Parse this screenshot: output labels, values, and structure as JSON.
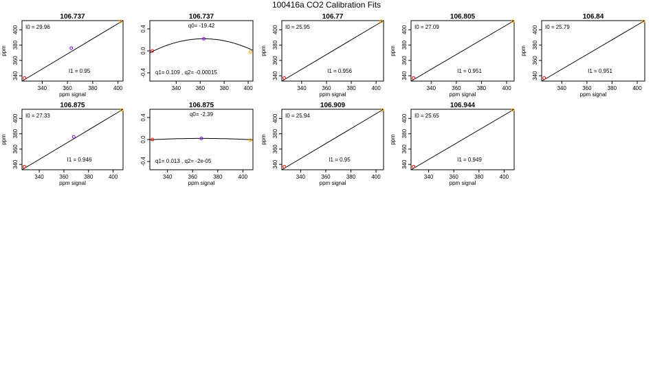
{
  "title": "100416a   CO2 Calibration Fits",
  "chart_data": [
    {
      "type": "scatter-fit",
      "kind": "linear",
      "title": "106.737",
      "xlabel": "ppm signal",
      "ylabel": "ppm",
      "xlim": [
        324,
        404
      ],
      "ylim": [
        333,
        412
      ],
      "xticks": [
        340,
        360,
        380,
        400
      ],
      "yticks": [
        340,
        360,
        380,
        400
      ],
      "x": [
        326,
        363,
        402
      ],
      "y": [
        337,
        376,
        411
      ],
      "colors": [
        "#ff0000",
        "#8800ff",
        "#ffa500"
      ],
      "fit_line": [
        [
          324,
          333
        ],
        [
          404,
          412
        ]
      ],
      "annotations": [
        {
          "text": "I0 =  29.96",
          "pos": "top-left"
        },
        {
          "text": "I1 =  0.95",
          "pos": "bottom-center"
        }
      ]
    },
    {
      "type": "scatter-fit",
      "kind": "quadratic",
      "title": "106.737",
      "xlabel": "",
      "ylabel": "",
      "xlim": [
        318,
        404
      ],
      "ylim": [
        -0.55,
        0.55
      ],
      "xticks": [
        340,
        360,
        380,
        400
      ],
      "yticks": [
        -0.4,
        0.0,
        0.4
      ],
      "x": [
        320,
        363,
        402
      ],
      "y": [
        0.0,
        0.22,
        -0.02
      ],
      "colors": [
        "#ff0000",
        "#8800ff",
        "#ffa500"
      ],
      "curve": {
        "a": 0.22,
        "h": 363,
        "k": -0.000126
      },
      "annotations": [
        {
          "text": "q0=  -19.42",
          "pos": "top-center"
        },
        {
          "text": "q1=  0.109 , q2=  -0.00015",
          "pos": "bottom-left"
        }
      ]
    },
    {
      "type": "scatter-fit",
      "kind": "linear",
      "title": "106.77",
      "xlabel": "ppm signal",
      "ylabel": "ppm",
      "xlim": [
        324,
        406
      ],
      "ylim": [
        333,
        412
      ],
      "xticks": [
        340,
        360,
        380,
        400
      ],
      "yticks": [
        340,
        360,
        380,
        400
      ],
      "x": [
        326,
        404
      ],
      "y": [
        337,
        411
      ],
      "colors": [
        "#ff0000",
        "#ffa500"
      ],
      "fit_line": [
        [
          324,
          333
        ],
        [
          406,
          412
        ]
      ],
      "annotations": [
        {
          "text": "I0 =  25.95",
          "pos": "top-left"
        },
        {
          "text": "I1 =  0.956",
          "pos": "bottom-center"
        }
      ]
    },
    {
      "type": "scatter-fit",
      "kind": "linear",
      "title": "106.805",
      "xlabel": "ppm signal",
      "ylabel": "ppm",
      "xlim": [
        324,
        406
      ],
      "ylim": [
        333,
        412
      ],
      "xticks": [
        340,
        360,
        380,
        400
      ],
      "yticks": [
        340,
        360,
        380,
        400
      ],
      "x": [
        326,
        405
      ],
      "y": [
        337,
        411
      ],
      "colors": [
        "#ff0000",
        "#ffa500"
      ],
      "fit_line": [
        [
          324,
          333
        ],
        [
          406,
          412
        ]
      ],
      "annotations": [
        {
          "text": "I0 =  27.09",
          "pos": "top-left"
        },
        {
          "text": "I1 =  0.951",
          "pos": "bottom-center"
        }
      ]
    },
    {
      "type": "scatter-fit",
      "kind": "linear",
      "title": "106.84",
      "xlabel": "ppm signal",
      "ylabel": "ppm",
      "xlim": [
        324,
        406
      ],
      "ylim": [
        333,
        412
      ],
      "xticks": [
        340,
        360,
        380,
        400
      ],
      "yticks": [
        340,
        360,
        380,
        400
      ],
      "x": [
        326,
        405
      ],
      "y": [
        337,
        411
      ],
      "colors": [
        "#ff0000",
        "#ffa500"
      ],
      "fit_line": [
        [
          324,
          333
        ],
        [
          406,
          412
        ]
      ],
      "annotations": [
        {
          "text": "I0 =  25.79",
          "pos": "top-left"
        },
        {
          "text": "I1 =  0.951",
          "pos": "bottom-center"
        }
      ]
    },
    {
      "type": "scatter-fit",
      "kind": "linear",
      "title": "106.875",
      "xlabel": "ppm signal",
      "ylabel": "ppm",
      "xlim": [
        326,
        408
      ],
      "ylim": [
        333,
        412
      ],
      "xticks": [
        340,
        360,
        380,
        400
      ],
      "yticks": [
        340,
        360,
        380,
        400
      ],
      "x": [
        328,
        368,
        407
      ],
      "y": [
        337,
        376,
        411
      ],
      "colors": [
        "#ff0000",
        "#8800ff",
        "#ffa500"
      ],
      "fit_line": [
        [
          326,
          333
        ],
        [
          408,
          412
        ]
      ],
      "annotations": [
        {
          "text": "I0 =  27.33",
          "pos": "top-left"
        },
        {
          "text": "I1 =  0.946",
          "pos": "bottom-center"
        }
      ]
    },
    {
      "type": "scatter-fit",
      "kind": "quadratic",
      "title": "106.875",
      "xlabel": "ppm signal",
      "ylabel": "",
      "xlim": [
        326,
        408
      ],
      "ylim": [
        -0.55,
        0.55
      ],
      "xticks": [
        340,
        360,
        380,
        400
      ],
      "yticks": [
        -0.4,
        0.0,
        0.4
      ],
      "x": [
        328,
        367,
        406
      ],
      "y": [
        0.0,
        0.02,
        -0.01
      ],
      "colors": [
        "#ff0000",
        "#8800ff",
        "#ffa500"
      ],
      "curve": {
        "a": 0.02,
        "h": 367,
        "k": -1.5e-05
      },
      "annotations": [
        {
          "text": "q0=  -2.39",
          "pos": "top-center"
        },
        {
          "text": "q1=  0.013 , q2=  -2e-05",
          "pos": "bottom-left"
        }
      ]
    },
    {
      "type": "scatter-fit",
      "kind": "linear",
      "title": "106.909",
      "xlabel": "ppm signal",
      "ylabel": "ppm",
      "xlim": [
        325,
        406
      ],
      "ylim": [
        333,
        412
      ],
      "xticks": [
        340,
        360,
        380,
        400
      ],
      "yticks": [
        340,
        360,
        380,
        400
      ],
      "x": [
        327,
        405
      ],
      "y": [
        337,
        411
      ],
      "colors": [
        "#ff0000",
        "#ffa500"
      ],
      "fit_line": [
        [
          325,
          333
        ],
        [
          406,
          412
        ]
      ],
      "annotations": [
        {
          "text": "I0 =  25.94",
          "pos": "top-left"
        },
        {
          "text": "I1 =  0.95",
          "pos": "bottom-center"
        }
      ]
    },
    {
      "type": "scatter-fit",
      "kind": "linear",
      "title": "106.944",
      "xlabel": "ppm signal",
      "ylabel": "ppm",
      "xlim": [
        326,
        408
      ],
      "ylim": [
        333,
        412
      ],
      "xticks": [
        340,
        360,
        380,
        400
      ],
      "yticks": [
        340,
        360,
        380,
        400
      ],
      "x": [
        328,
        407
      ],
      "y": [
        337,
        411
      ],
      "colors": [
        "#ff0000",
        "#ffa500"
      ],
      "fit_line": [
        [
          326,
          333
        ],
        [
          408,
          412
        ]
      ],
      "annotations": [
        {
          "text": "I0 =  25.65",
          "pos": "top-left"
        },
        {
          "text": "I1 =  0.949",
          "pos": "bottom-center"
        }
      ]
    }
  ]
}
